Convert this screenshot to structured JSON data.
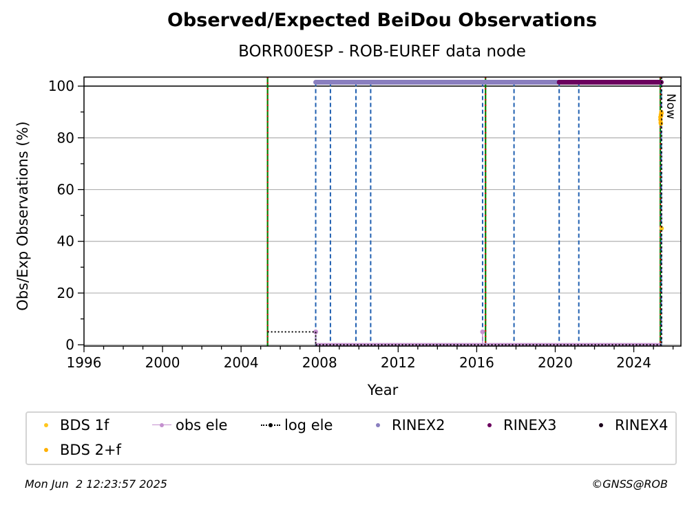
{
  "chart_data": {
    "type": "scatter",
    "title": "Observed/Expected BeiDou Observations",
    "subtitle": "BORR00ESP - ROB-EUREF data node",
    "xlabel": "Year",
    "ylabel": "Obs/Exp Observations (%)",
    "xlim": [
      1996,
      2026.4
    ],
    "ylim": [
      -0.5,
      103.5
    ],
    "xticks": [
      1996,
      2000,
      2004,
      2008,
      2012,
      2016,
      2020,
      2024
    ],
    "yticks": [
      0,
      20,
      40,
      60,
      80,
      100
    ],
    "grid": "horizontal",
    "now_label": "Now",
    "now_x": 2025.42,
    "reference_line_y": 100,
    "vlines_green_red": [
      2005.35,
      2016.45,
      2025.35
    ],
    "vlines_blue_dashed": [
      2007.8,
      2008.55,
      2009.85,
      2010.6,
      2016.3,
      2017.9,
      2020.2,
      2021.2,
      2025.4
    ],
    "series": [
      {
        "name": "BDS 1f",
        "color": "#ffc61e",
        "points": [
          [
            2025.35,
            88
          ],
          [
            2025.38,
            89
          ],
          [
            2025.4,
            90
          ],
          [
            2025.37,
            86
          ],
          [
            2025.42,
            45
          ]
        ]
      },
      {
        "name": "BDS 2+f",
        "color": "#ffb000",
        "points": [
          [
            2025.36,
            87
          ],
          [
            2025.39,
            88.5
          ],
          [
            2025.41,
            89.5
          ],
          [
            2025.38,
            85.5
          ]
        ]
      },
      {
        "name": "obs ele",
        "color": "#c490cf",
        "segments": [
          [
            2007.8,
            2025.4,
            0
          ]
        ],
        "stems": [
          [
            2007.8,
            5
          ],
          [
            2016.3,
            5
          ]
        ]
      },
      {
        "name": "log ele",
        "color": "#000000",
        "segments": [
          [
            2005.35,
            2007.8,
            5
          ],
          [
            2007.8,
            2025.4,
            0
          ]
        ]
      },
      {
        "name": "RINEX2",
        "color": "#8a7fbf",
        "segments": [
          [
            2007.8,
            2020.2,
            101.5
          ]
        ]
      },
      {
        "name": "RINEX3",
        "color": "#6b005e",
        "segments": [
          [
            2020.2,
            2025.4,
            101.5
          ]
        ]
      },
      {
        "name": "RINEX4",
        "color": "#1a001a",
        "segments": []
      }
    ]
  },
  "legend": {
    "bds1f": "BDS 1f",
    "obsele": "obs ele",
    "logele": "log ele",
    "rinex2": "RINEX2",
    "rinex3": "RINEX3",
    "rinex4": "RINEX4",
    "bds2f": "BDS 2+f"
  },
  "footer": {
    "timestamp": "Mon Jun  2 12:23:57 2025",
    "credit": "©GNSS@ROB"
  }
}
